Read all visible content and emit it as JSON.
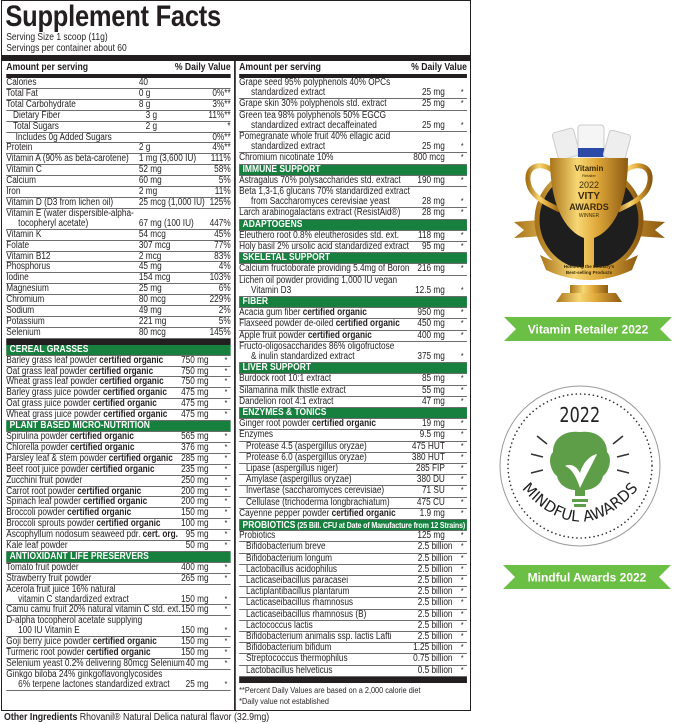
{
  "facts": {
    "title": "Supplement Facts",
    "serving_size": "Serving Size 1 scoop (11g)",
    "servings": "Servings per container about 60",
    "header_amount": "Amount per serving",
    "header_dv": "% Daily Value"
  },
  "left_nutrients": [
    {
      "l": "Calories",
      "a": "40",
      "d": ""
    },
    {
      "l": "Total Fat",
      "a": "0 g",
      "d": "0%**"
    },
    {
      "l": "Total Carbohydrate",
      "a": "8 g",
      "d": "3%**"
    },
    {
      "l": "Dietary Fiber",
      "a": "3 g",
      "d": "11%**",
      "i": 1
    },
    {
      "l": "Total Sugars",
      "a": "2 g",
      "d": "*",
      "i": 1
    },
    {
      "l": "Includes 0g Added Sugars",
      "a": "",
      "d": "0%**",
      "i": 2
    },
    {
      "l": "Protein",
      "a": "2 g",
      "d": "4%**"
    },
    {
      "l": "Vitamin A (90% as beta-carotene)",
      "a": "1 mg (3,600 IU)",
      "d": "111%"
    },
    {
      "l": "Vitamin C",
      "a": "52 mg",
      "d": "58%"
    },
    {
      "l": "Calcium",
      "a": "60 mg",
      "d": "5%"
    },
    {
      "l": "Iron",
      "a": "2 mg",
      "d": "11%"
    },
    {
      "l": "Vitamin D (D3 from lichen oil)",
      "a": "25 mcg (1,000 IU)",
      "d": "125%"
    },
    {
      "l": "Vitamin E (water dispersible-alpha-",
      "l2": "tocopheryl acetate)",
      "a": "67 mg (100 IU)",
      "d": "447%"
    },
    {
      "l": "Vitamin K",
      "a": "54 mcg",
      "d": "45%"
    },
    {
      "l": "Folate",
      "a": "307 mcg",
      "d": "77%"
    },
    {
      "l": "Vitamin B12",
      "a": "2 mcg",
      "d": "83%"
    },
    {
      "l": "Phosphorus",
      "a": "45 mg",
      "d": "4%"
    },
    {
      "l": "Iodine",
      "a": "154 mcg",
      "d": "103%"
    },
    {
      "l": "Magnesium",
      "a": "25 mg",
      "d": "6%"
    },
    {
      "l": "Chromium",
      "a": "80 mcg",
      "d": "229%"
    },
    {
      "l": "Sodium",
      "a": "49 mg",
      "d": "2%"
    },
    {
      "l": "Potassium",
      "a": "221 mg",
      "d": "5%"
    },
    {
      "l": "Selenium",
      "a": "80 mcg",
      "d": "145%"
    }
  ],
  "left_ingredients": [
    {
      "t": "h",
      "label": "CEREAL GRASSES"
    },
    {
      "l": "Barley grass leaf powder ",
      "b": "certified organic",
      "a": "750 mg",
      "d": "*"
    },
    {
      "l": "Oat grass leaf powder ",
      "b": "certified organic",
      "a": "750 mg",
      "d": "*"
    },
    {
      "l": "Wheat grass leaf powder ",
      "b": "certified organic",
      "a": "750 mg",
      "d": "*"
    },
    {
      "l": "Barley grass juice powder ",
      "b": "certified organic",
      "a": "475 mg",
      "d": "*"
    },
    {
      "l": "Oat grass juice powder ",
      "b": "certified organic",
      "a": "475 mg",
      "d": "*"
    },
    {
      "l": "Wheat grass juice powder ",
      "b": "certified organic",
      "a": "475 mg",
      "d": "*"
    },
    {
      "t": "h",
      "label": "PLANT BASED MICRO-NUTRITION"
    },
    {
      "l": "Spirulina powder ",
      "b": "certified organic",
      "a": "565 mg",
      "d": "*"
    },
    {
      "l": "Chlorella powder ",
      "b": "certified organic",
      "a": "376 mg",
      "d": "*"
    },
    {
      "l": "Parsley leaf & stem powder ",
      "b": "certified organic",
      "a": "285 mg",
      "d": "*"
    },
    {
      "l": "Beet root juice powder ",
      "b": "certified organic",
      "a": "235 mg",
      "d": "*"
    },
    {
      "l": "Zucchini fruit powder",
      "a": "250 mg",
      "d": "*"
    },
    {
      "l": "Carrot root powder ",
      "b": "certified organic",
      "a": "200 mg",
      "d": "*"
    },
    {
      "l": "Spinach leaf powder ",
      "b": "certified organic",
      "a": "200 mg",
      "d": "*"
    },
    {
      "l": "Broccoli powder ",
      "b": "certified organic",
      "a": "150 mg",
      "d": "*"
    },
    {
      "l": "Broccoli sprouts powder ",
      "b": "certified organic",
      "a": "100 mg",
      "d": "*"
    },
    {
      "l": "Ascophyllum nodosum seaweed pdr. ",
      "b": "cert. org.",
      "a": "95 mg",
      "d": "*"
    },
    {
      "l": "Kale leaf powder",
      "a": "50 mg",
      "d": "*"
    },
    {
      "t": "h",
      "label": "ANTIOXIDANT LIFE PRESERVERS"
    },
    {
      "l": "Tomato fruit powder",
      "a": "400 mg",
      "d": "*"
    },
    {
      "l": "Strawberry fruit powder",
      "a": "265 mg",
      "d": "*"
    },
    {
      "l": "Acerola fruit juice 16% natural",
      "l2": "vitamin C standardized extract",
      "a": "150 mg",
      "d": "*"
    },
    {
      "l": "Camu camu fruit 20% natural vitamin C std. ext.",
      "a": "150 mg",
      "d": "*"
    },
    {
      "l": "D-alpha tocopherol acetate supplying",
      "l2": "100 IU Vitamin E",
      "a": "150 mg",
      "d": "*"
    },
    {
      "l": "Goji berry juice powder ",
      "b": "certified organic",
      "a": "150 mg",
      "d": "*"
    },
    {
      "l": "Turmeric root powder ",
      "b": "certified organic",
      "a": "150 mg",
      "d": "*"
    },
    {
      "l": "Selenium yeast 0.2% delivering 80mcg Selenium",
      "a": "40 mg",
      "d": "*"
    },
    {
      "l": "Ginkgo biloba 24% ginkgoflavonglycosides",
      "l2": "6% terpene lactones standardized extract",
      "a": "25 mg",
      "d": "*"
    }
  ],
  "right_ingredients": [
    {
      "l": "Grape seed 95% polyphenols 40% OPCs",
      "l2": "standardized extract",
      "a": "25 mg",
      "d": "*"
    },
    {
      "l": "Grape skin 30% polyphenols std. extract",
      "a": "25 mg",
      "d": "*"
    },
    {
      "l": "Green tea 98% polyphenols 50% EGCG",
      "l2": "standardized extract decaffeinated",
      "a": "25 mg",
      "d": "*"
    },
    {
      "l": "Pomegranate whole fruit 40% ellagic acid",
      "l2": "standardized extract",
      "a": "25 mg",
      "d": "*"
    },
    {
      "l": "Chromium nicotinate 10%",
      "a": "800 mcg",
      "d": "*"
    },
    {
      "t": "h",
      "label": "IMMUNE SUPPORT"
    },
    {
      "l": "Astragalus 70% polysaccharides std. extract",
      "a": "190 mg",
      "d": "*"
    },
    {
      "l": "Beta 1,3-1,6 glucans 70% standardized extract",
      "l2": "from Saccharomyces cerevisiae yeast",
      "a": "28 mg",
      "d": "*"
    },
    {
      "l": "Larch arabinogalactans extract (ResistAid®)",
      "a": "28 mg",
      "d": "*"
    },
    {
      "t": "h",
      "label": "ADAPTOGENS"
    },
    {
      "l": "Eleuthero root 0.8% eleutherosides std. ext.",
      "a": "118 mg",
      "d": "*"
    },
    {
      "l": "Holy basil 2% ursolic acid standardized extract",
      "a": "95 mg",
      "d": "*"
    },
    {
      "t": "h",
      "label": "SKELETAL SUPPORT"
    },
    {
      "l": "Calcium fructoborate providing 5.4mg of Boron",
      "a": "216 mg",
      "d": "*"
    },
    {
      "l": "Lichen oil powder providing 1,000 IU vegan",
      "l2": "Vitamin D3",
      "a": "12.5 mg",
      "d": "*"
    },
    {
      "t": "h",
      "label": "FIBER"
    },
    {
      "l": "Acacia gum fiber ",
      "b": "certified organic",
      "a": "950 mg",
      "d": "*"
    },
    {
      "l": "Flaxseed powder de-oiled ",
      "b": "certified organic",
      "a": "450 mg",
      "d": "*"
    },
    {
      "l": "Apple fruit powder ",
      "b": "certified organic",
      "a": "400 mg",
      "d": "*"
    },
    {
      "l": "Fructo-oligosaccharides 86% oligofructose",
      "l2": "& inulin standardized extract",
      "a": "375 mg",
      "d": "*"
    },
    {
      "t": "h",
      "label": "LIVER SUPPORT"
    },
    {
      "l": "Burdock root 10:1 extract",
      "a": "85 mg",
      "d": "*"
    },
    {
      "l": "Silamarina milk thistle extract",
      "a": "55 mg",
      "d": "*"
    },
    {
      "l": "Dandelion root 4:1 extract",
      "a": "47 mg",
      "d": "*"
    },
    {
      "t": "h",
      "label": "ENZYMES & TONICS"
    },
    {
      "l": "Ginger root powder ",
      "b": "certified organic",
      "a": "19 mg",
      "d": "*"
    },
    {
      "l": "Enzymes",
      "a": "9.5 mg",
      "d": "*"
    },
    {
      "l": "Protease 4.5 (aspergillus oryzae)",
      "a": "475 HUT",
      "d": "*",
      "i": 1
    },
    {
      "l": "Protease 6.0 (aspergillus oryzae)",
      "a": "380 HUT",
      "d": "*",
      "i": 1
    },
    {
      "l": "Lipase (aspergillus niger)",
      "a": "285 FIP",
      "d": "*",
      "i": 1
    },
    {
      "l": "Amylase (aspergillus oryzae)",
      "a": "380 DU",
      "d": "*",
      "i": 1
    },
    {
      "l": "Invertase (saccharomyces cerevisiae)",
      "a": "71 SU",
      "d": "*",
      "i": 1
    },
    {
      "l": "Cellulase (trichoderma longbrachiatum)",
      "a": "475 CU",
      "d": "*",
      "i": 1
    },
    {
      "l": "Cayenne pepper powder ",
      "b": "certified organic",
      "a": "1.9 mg",
      "d": "*"
    },
    {
      "t": "h",
      "label": "PROBIOTICS",
      "sub": " (25 Bill. CFU at Date of Manufacture from 12 Strains)"
    },
    {
      "l": "Probiotics",
      "a": "125 mg",
      "d": "*"
    },
    {
      "l": "Bifidobacterium breve",
      "a": "2.5 billion",
      "d": "*",
      "i": 1,
      "s": 1
    },
    {
      "l": "Bifidobacterium longum",
      "a": "2.5 billion",
      "d": "*",
      "i": 1,
      "s": 1
    },
    {
      "l": "Lactobacillus acidophilus",
      "a": "2.5 billion",
      "d": "*",
      "i": 1,
      "s": 1
    },
    {
      "l": "Lacticaseibacillus paracasei",
      "a": "2.5 billion",
      "d": "*",
      "i": 1,
      "s": 1
    },
    {
      "l": "Lactiplantibacillus plantarum",
      "a": "2.5 billion",
      "d": "*",
      "i": 1,
      "s": 1
    },
    {
      "l": "Lacticaseibacillus rhamnosus",
      "a": "2.5 billion",
      "d": "*",
      "i": 1,
      "s": 1
    },
    {
      "l": "Lacticaseibacillus rhamnosus (B)",
      "a": "2.5 billion",
      "d": "*",
      "i": 1,
      "s": 1
    },
    {
      "l": "Lactococcus lactis",
      "a": "2.5 billion",
      "d": "*",
      "i": 1,
      "s": 1
    },
    {
      "l": "Bifidobacterium animalis ssp. lactis Lafti",
      "a": "2.5 billion",
      "d": "*",
      "i": 1,
      "s": 1
    },
    {
      "l": "Bifidobacterium bifidum",
      "a": "1.25 billion",
      "d": "*",
      "i": 1,
      "s": 1
    },
    {
      "l": "Streptococcus thermophilus",
      "a": "0.75 billion",
      "d": "*",
      "i": 1,
      "s": 1
    },
    {
      "l": "Lactobacillus helveticus",
      "a": "0.5 billion",
      "d": "*",
      "i": 1,
      "s": 1
    }
  ],
  "footnotes": [
    "**Percent Daily Values are based on a 2,000 calorie diet",
    "*Daily value not established"
  ],
  "other_ingredients": {
    "label": "Other Ingredients",
    "text": " Rhovanil® Natural Delica natural flavor (32.9mg)"
  },
  "awards": {
    "vity": {
      "ribbon": "Vitamin Retailer 2022",
      "logo_text": [
        "Vitamin",
        "Retailer",
        "2022",
        "VITY",
        "AWARDS",
        "WINNER",
        "Honoring the Industry's",
        "Best-selling Products"
      ]
    },
    "mindful": {
      "ribbon": "Mindful Awards 2022",
      "logo_text": [
        "2022",
        "MINDFUL AWARDS"
      ]
    },
    "ribbon_color": "#6cbf45",
    "section_color": "#17803f"
  }
}
